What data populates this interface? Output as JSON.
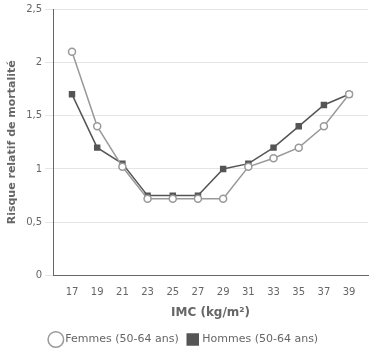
{
  "chart_data": {
    "type": "line",
    "x": [
      17,
      19,
      21,
      23,
      25,
      27,
      29,
      31,
      33,
      35,
      37,
      39
    ],
    "series": [
      {
        "name": "Femmes (50-64 ans)",
        "color": "#999999",
        "marker": "circle",
        "values": [
          2.1,
          1.4,
          1.02,
          0.72,
          0.72,
          0.72,
          0.72,
          1.02,
          1.1,
          1.2,
          1.4,
          1.7
        ]
      },
      {
        "name": "Hommes (50-64 ans)",
        "color": "#555555",
        "marker": "square",
        "values": [
          1.7,
          1.2,
          1.05,
          0.75,
          0.75,
          0.75,
          1.0,
          1.05,
          1.2,
          1.4,
          1.6,
          1.7
        ]
      }
    ],
    "x_label": "IMC (kg/m²)",
    "y_label": "Risque relatif de mortalité",
    "xlim": [
      15.5,
      40.5
    ],
    "xticks": [
      17,
      19,
      21,
      23,
      25,
      27,
      29,
      31,
      33,
      35,
      37,
      39
    ],
    "ylim": [
      0,
      2.5
    ],
    "yticks": [
      0,
      {
        "value": 0.5,
        "label": "0,5"
      },
      1,
      {
        "value": 1.5,
        "label": "1,5"
      },
      2,
      {
        "value": 2.5,
        "label": "2,5"
      }
    ],
    "grid": "y",
    "legend": "bottom"
  }
}
